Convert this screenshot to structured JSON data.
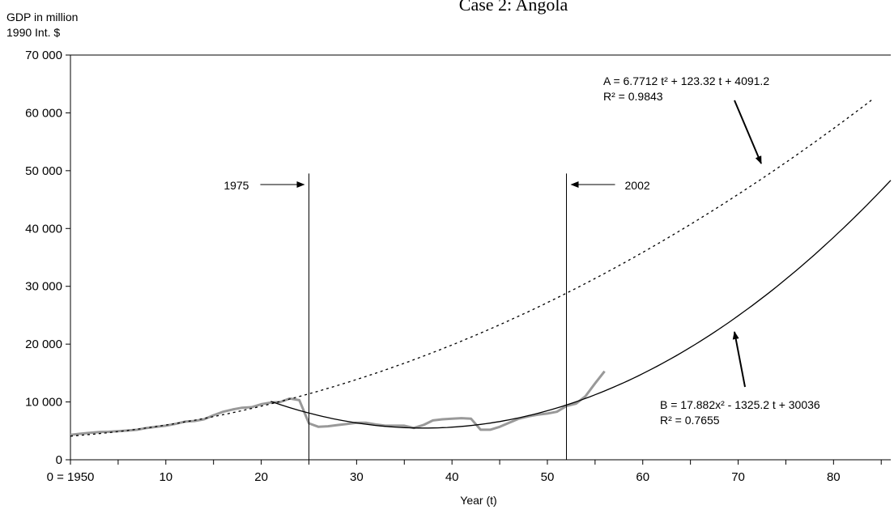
{
  "chart_data": {
    "type": "line",
    "title": "Case 2: Angola",
    "ylabel_line1": "GDP in million",
    "ylabel_line2": "1990 Int. $",
    "xlabel": "Year (t)",
    "xlim": [
      0,
      86
    ],
    "ylim": [
      0,
      70000
    ],
    "x_ticks": [
      0,
      10,
      20,
      30,
      40,
      50,
      60,
      70,
      80
    ],
    "x_tick_labels": [
      "0 = 1950",
      "10",
      "20",
      "30",
      "40",
      "50",
      "60",
      "70",
      "80"
    ],
    "y_ticks": [
      0,
      10000,
      20000,
      30000,
      40000,
      50000,
      60000,
      70000
    ],
    "y_tick_labels": [
      "0",
      "10 000",
      "20 000",
      "30 000",
      "40 000",
      "50 000",
      "60 000",
      "70 000"
    ],
    "grid": false,
    "series": [
      {
        "style": "solid-gray",
        "color": "#999999",
        "x": [
          0,
          1,
          2,
          3,
          4,
          5,
          6,
          7,
          8,
          9,
          10,
          11,
          12,
          13,
          14,
          15,
          16,
          17,
          18,
          19,
          20,
          21,
          22,
          23,
          24,
          25,
          26,
          27,
          28,
          29,
          30,
          31,
          32,
          33,
          34,
          35,
          36,
          37,
          38,
          39,
          40,
          41,
          42,
          43,
          44,
          45,
          46,
          47,
          48,
          49,
          50,
          51,
          52,
          53,
          54,
          55,
          56
        ],
        "values": [
          4300,
          4500,
          4650,
          4800,
          4850,
          4950,
          5050,
          5200,
          5500,
          5700,
          5900,
          6200,
          6600,
          6700,
          7000,
          7700,
          8300,
          8700,
          9000,
          9100,
          9600,
          9900,
          10000,
          10600,
          10300,
          6300,
          5700,
          5800,
          6000,
          6200,
          6400,
          6400,
          6100,
          5900,
          5900,
          5900,
          5500,
          6000,
          6800,
          7000,
          7100,
          7200,
          7100,
          5200,
          5200,
          5700,
          6400,
          7100,
          7500,
          7800,
          8000,
          8300,
          9300,
          9700,
          11000,
          13200,
          15300
        ]
      },
      {
        "style": "dotted-fit",
        "color": "#000000",
        "x_start": 0,
        "x_end": 84,
        "coefficients": [
          6.7712,
          123.32,
          4091.2
        ]
      },
      {
        "style": "solid-fit",
        "color": "#000000",
        "x_start": 21,
        "x_end": 86,
        "coefficients": [
          17.882,
          -1325.2,
          30036
        ]
      }
    ],
    "vertical_lines": [
      {
        "x": 25,
        "label": "1975",
        "arrow": "from-left"
      },
      {
        "x": 52,
        "label": "2002",
        "arrow": "from-right"
      }
    ],
    "annotations": [
      {
        "line1": "A = 6.7712 t² + 123.32 t + 4091.2",
        "line2": "R² = 0.9843",
        "points_to_x": 71
      },
      {
        "line1": "B = 17.882x² - 1325.2 t + 30036",
        "line2": "R² = 0.7655",
        "points_to_x": 69
      }
    ]
  }
}
